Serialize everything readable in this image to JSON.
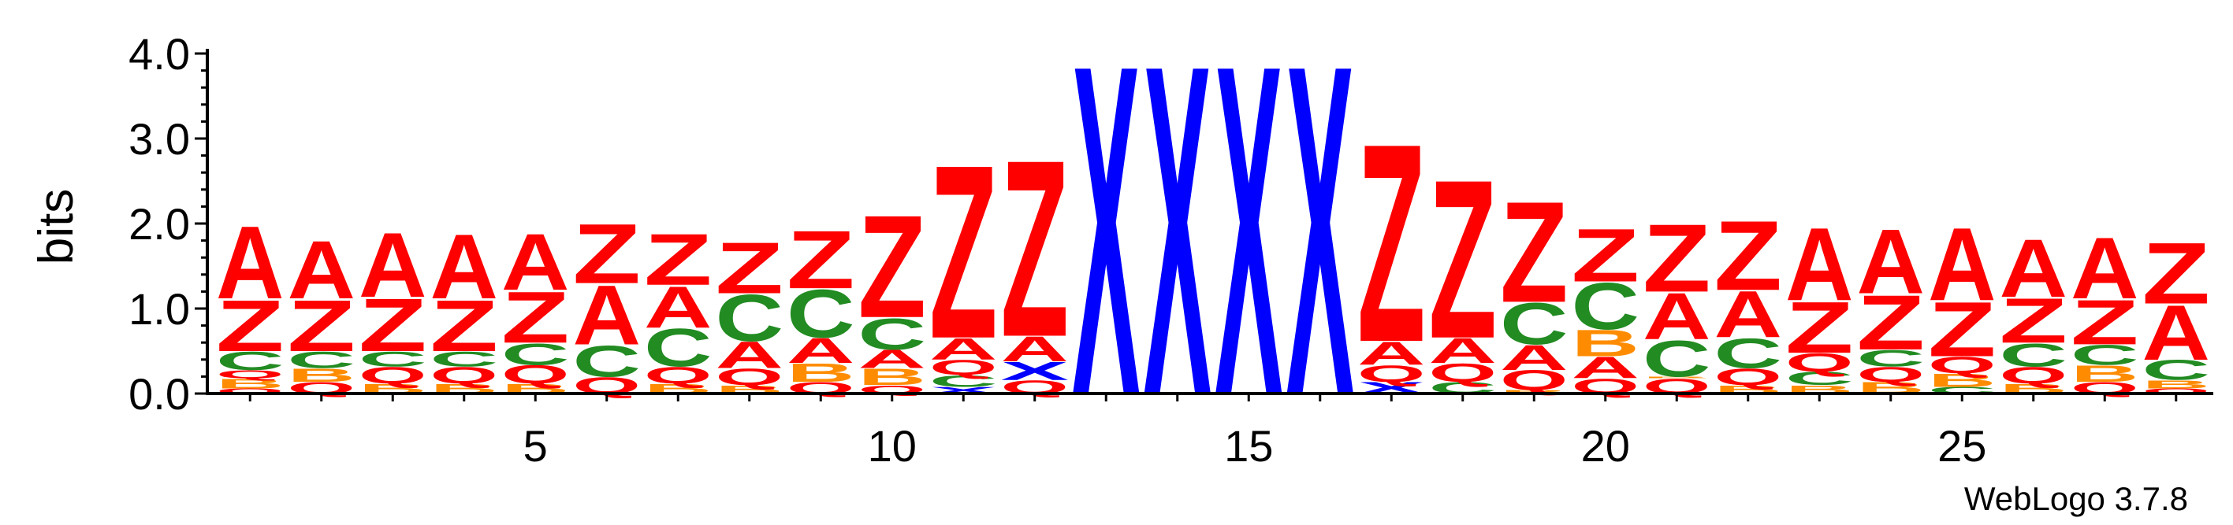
{
  "chart_data": {
    "type": "sequence-logo",
    "ylabel": "bits",
    "xlabel": "",
    "ylim": [
      0,
      4.0
    ],
    "y_ticks": [
      "0.0",
      "1.0",
      "2.0",
      "3.0",
      "4.0"
    ],
    "x_ticks": [
      "5",
      "10",
      "15",
      "20",
      "25"
    ],
    "x_tick_values": [
      5,
      10,
      15,
      20,
      25
    ],
    "grid": false,
    "credit": "WebLogo 3.7.8",
    "colors": {
      "A": "#ff0000",
      "Z": "#ff0000",
      "Q": "#ff0000",
      "C": "#228b22",
      "B": "#ff8c00",
      "X": "#0000ff"
    },
    "positions": [
      {
        "x": 1,
        "stack": [
          {
            "l": "Q",
            "h": 0.06
          },
          {
            "l": "B",
            "h": 0.12
          },
          {
            "l": "Q",
            "h": 0.1
          },
          {
            "l": "C",
            "h": 0.22
          },
          {
            "l": "Z",
            "h": 0.62
          },
          {
            "l": "A",
            "h": 0.88
          }
        ]
      },
      {
        "x": 2,
        "stack": [
          {
            "l": "Q",
            "h": 0.14
          },
          {
            "l": "B",
            "h": 0.16
          },
          {
            "l": "C",
            "h": 0.2
          },
          {
            "l": "Z",
            "h": 0.62
          },
          {
            "l": "A",
            "h": 0.7
          }
        ]
      },
      {
        "x": 3,
        "stack": [
          {
            "l": "B",
            "h": 0.12
          },
          {
            "l": "Q",
            "h": 0.2
          },
          {
            "l": "C",
            "h": 0.18
          },
          {
            "l": "Z",
            "h": 0.64
          },
          {
            "l": "A",
            "h": 0.78
          }
        ]
      },
      {
        "x": 4,
        "stack": [
          {
            "l": "B",
            "h": 0.12
          },
          {
            "l": "Q",
            "h": 0.2
          },
          {
            "l": "C",
            "h": 0.18
          },
          {
            "l": "Z",
            "h": 0.62
          },
          {
            "l": "A",
            "h": 0.78
          }
        ]
      },
      {
        "x": 5,
        "stack": [
          {
            "l": "B",
            "h": 0.12
          },
          {
            "l": "Q",
            "h": 0.22
          },
          {
            "l": "C",
            "h": 0.26
          },
          {
            "l": "Z",
            "h": 0.62
          },
          {
            "l": "A",
            "h": 0.68
          }
        ]
      },
      {
        "x": 6,
        "stack": [
          {
            "l": "Q",
            "h": 0.2
          },
          {
            "l": "C",
            "h": 0.38
          },
          {
            "l": "A",
            "h": 0.72
          },
          {
            "l": "Z",
            "h": 0.72
          }
        ]
      },
      {
        "x": 7,
        "stack": [
          {
            "l": "B",
            "h": 0.12
          },
          {
            "l": "Q",
            "h": 0.2
          },
          {
            "l": "C",
            "h": 0.46
          },
          {
            "l": "A",
            "h": 0.5
          },
          {
            "l": "Z",
            "h": 0.62
          }
        ]
      },
      {
        "x": 8,
        "stack": [
          {
            "l": "B",
            "h": 0.1
          },
          {
            "l": "Q",
            "h": 0.2
          },
          {
            "l": "A",
            "h": 0.32
          },
          {
            "l": "C",
            "h": 0.56
          },
          {
            "l": "Z",
            "h": 0.62
          }
        ]
      },
      {
        "x": 9,
        "stack": [
          {
            "l": "Q",
            "h": 0.14
          },
          {
            "l": "B",
            "h": 0.22
          },
          {
            "l": "A",
            "h": 0.3
          },
          {
            "l": "C",
            "h": 0.58
          },
          {
            "l": "Z",
            "h": 0.7
          }
        ]
      },
      {
        "x": 10,
        "stack": [
          {
            "l": "Q",
            "h": 0.1
          },
          {
            "l": "B",
            "h": 0.2
          },
          {
            "l": "A",
            "h": 0.22
          },
          {
            "l": "C",
            "h": 0.38
          },
          {
            "l": "Z",
            "h": 1.24
          }
        ]
      },
      {
        "x": 11,
        "stack": [
          {
            "l": "X",
            "h": 0.08
          },
          {
            "l": "C",
            "h": 0.14
          },
          {
            "l": "Q",
            "h": 0.18
          },
          {
            "l": "A",
            "h": 0.26
          },
          {
            "l": "Z",
            "h": 2.1
          }
        ]
      },
      {
        "x": 12,
        "stack": [
          {
            "l": "Q",
            "h": 0.16
          },
          {
            "l": "X",
            "h": 0.22
          },
          {
            "l": "A",
            "h": 0.3
          },
          {
            "l": "Z",
            "h": 2.14
          }
        ]
      },
      {
        "x": 13,
        "stack": [
          {
            "l": "X",
            "h": 4.0
          }
        ]
      },
      {
        "x": 14,
        "stack": [
          {
            "l": "X",
            "h": 4.0
          }
        ]
      },
      {
        "x": 15,
        "stack": [
          {
            "l": "X",
            "h": 4.0
          }
        ]
      },
      {
        "x": 16,
        "stack": [
          {
            "l": "X",
            "h": 4.0
          }
        ]
      },
      {
        "x": 17,
        "stack": [
          {
            "l": "X",
            "h": 0.14
          },
          {
            "l": "Q",
            "h": 0.2
          },
          {
            "l": "A",
            "h": 0.28
          },
          {
            "l": "Z",
            "h": 2.4
          }
        ]
      },
      {
        "x": 18,
        "stack": [
          {
            "l": "C",
            "h": 0.14
          },
          {
            "l": "Q",
            "h": 0.22
          },
          {
            "l": "A",
            "h": 0.3
          },
          {
            "l": "Z",
            "h": 1.92
          }
        ]
      },
      {
        "x": 19,
        "stack": [
          {
            "l": "B",
            "h": 0.04
          },
          {
            "l": "Q",
            "h": 0.24
          },
          {
            "l": "A",
            "h": 0.3
          },
          {
            "l": "C",
            "h": 0.5
          },
          {
            "l": "Z",
            "h": 1.22
          }
        ]
      },
      {
        "x": 20,
        "stack": [
          {
            "l": "Q",
            "h": 0.18
          },
          {
            "l": "A",
            "h": 0.26
          },
          {
            "l": "B",
            "h": 0.32
          },
          {
            "l": "C",
            "h": 0.56
          },
          {
            "l": "Z",
            "h": 0.64
          }
        ]
      },
      {
        "x": 21,
        "stack": [
          {
            "l": "Q",
            "h": 0.18
          },
          {
            "l": "B",
            "h": 0.02
          },
          {
            "l": "C",
            "h": 0.44
          },
          {
            "l": "A",
            "h": 0.56
          },
          {
            "l": "Z",
            "h": 0.82
          }
        ]
      },
      {
        "x": 22,
        "stack": [
          {
            "l": "B",
            "h": 0.1
          },
          {
            "l": "Q",
            "h": 0.2
          },
          {
            "l": "C",
            "h": 0.36
          },
          {
            "l": "A",
            "h": 0.56
          },
          {
            "l": "Z",
            "h": 0.84
          }
        ]
      },
      {
        "x": 23,
        "stack": [
          {
            "l": "B",
            "h": 0.1
          },
          {
            "l": "C",
            "h": 0.16
          },
          {
            "l": "Q",
            "h": 0.22
          },
          {
            "l": "Z",
            "h": 0.62
          },
          {
            "l": "A",
            "h": 0.88
          }
        ]
      },
      {
        "x": 24,
        "stack": [
          {
            "l": "B",
            "h": 0.14
          },
          {
            "l": "Q",
            "h": 0.18
          },
          {
            "l": "C",
            "h": 0.2
          },
          {
            "l": "Z",
            "h": 0.66
          },
          {
            "l": "A",
            "h": 0.78
          }
        ]
      },
      {
        "x": 25,
        "stack": [
          {
            "l": "C",
            "h": 0.08
          },
          {
            "l": "B",
            "h": 0.16
          },
          {
            "l": "Q",
            "h": 0.2
          },
          {
            "l": "Z",
            "h": 0.66
          },
          {
            "l": "A",
            "h": 0.88
          }
        ]
      },
      {
        "x": 26,
        "stack": [
          {
            "l": "B",
            "h": 0.12
          },
          {
            "l": "Q",
            "h": 0.2
          },
          {
            "l": "C",
            "h": 0.28
          },
          {
            "l": "Z",
            "h": 0.54
          },
          {
            "l": "A",
            "h": 0.7
          }
        ]
      },
      {
        "x": 27,
        "stack": [
          {
            "l": "Q",
            "h": 0.14
          },
          {
            "l": "B",
            "h": 0.2
          },
          {
            "l": "C",
            "h": 0.24
          },
          {
            "l": "Z",
            "h": 0.54
          },
          {
            "l": "A",
            "h": 0.74
          }
        ]
      },
      {
        "x": 28,
        "stack": [
          {
            "l": "Q",
            "h": 0.06
          },
          {
            "l": "B",
            "h": 0.1
          },
          {
            "l": "C",
            "h": 0.24
          },
          {
            "l": "A",
            "h": 0.66
          },
          {
            "l": "Z",
            "h": 0.74
          }
        ]
      }
    ]
  }
}
